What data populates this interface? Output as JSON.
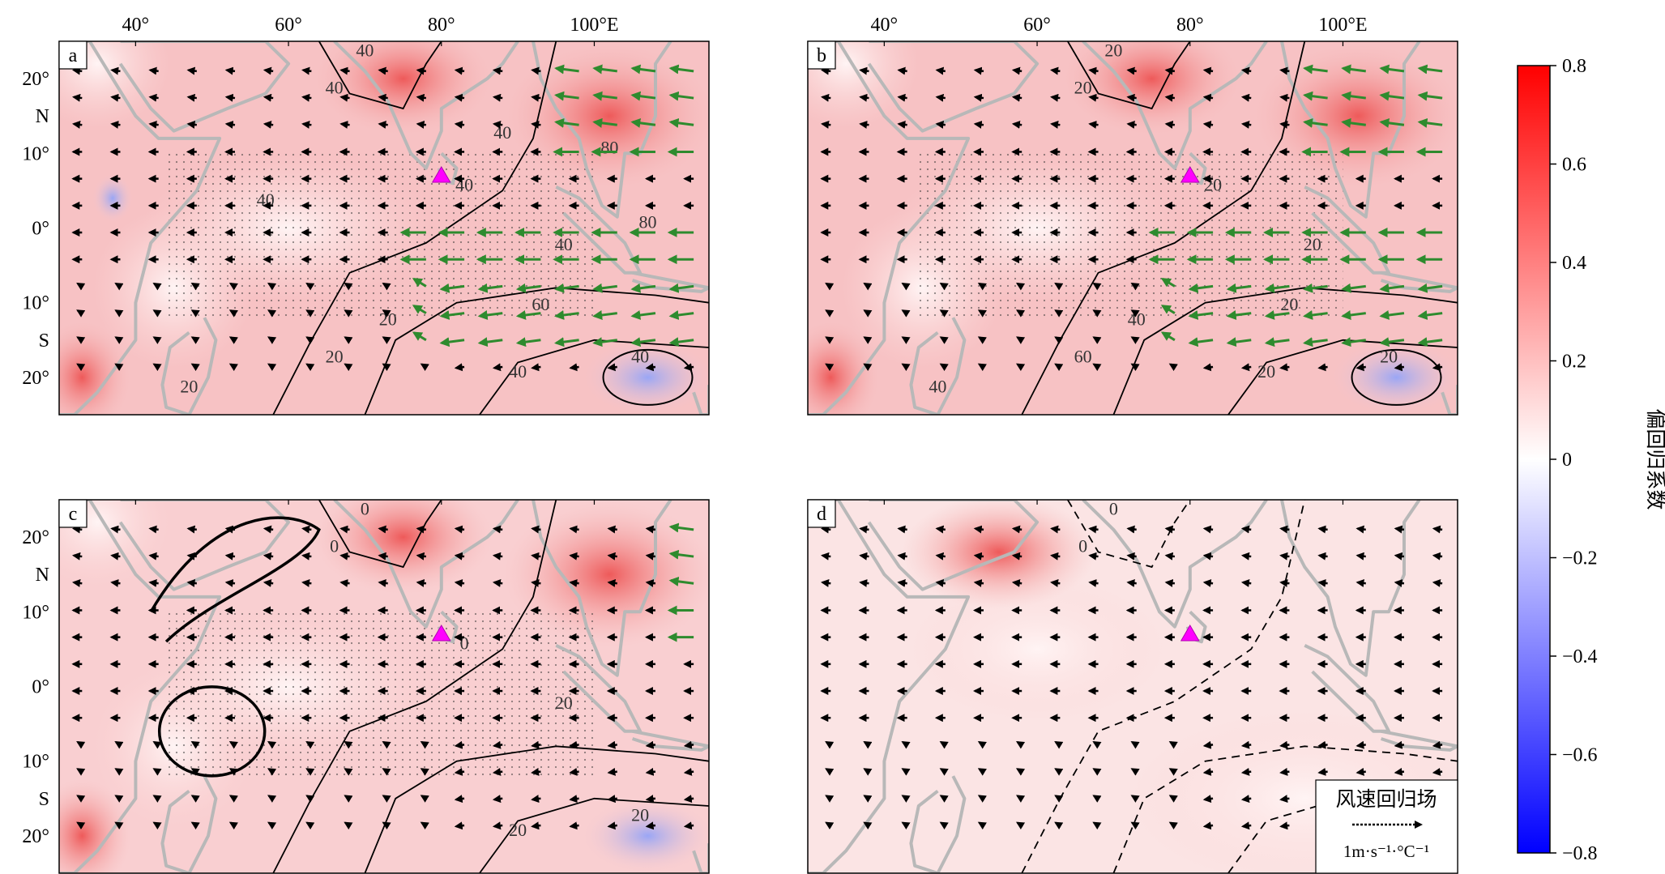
{
  "figure": {
    "x_ticks": [
      "40°",
      "60°",
      "80°",
      "100°E"
    ],
    "x_tick_values": [
      40,
      60,
      80,
      100
    ],
    "y_ticks_top": [
      "20°",
      "N",
      "10°",
      "0°",
      "10°",
      "S",
      "20°"
    ],
    "lon_range": [
      30,
      115
    ],
    "lat_range": [
      -25,
      25
    ],
    "station_marker": {
      "lon": 80,
      "lat": 7,
      "color": "#ff00ff"
    },
    "panels": [
      {
        "letter": "a",
        "contour_labels": [
          "40",
          "40",
          "40",
          "40",
          "40",
          "40",
          "20",
          "20",
          "20",
          "60",
          "80",
          "80",
          "40",
          "40"
        ]
      },
      {
        "letter": "b",
        "contour_labels": [
          "20",
          "20",
          "20",
          "20",
          "20",
          "20",
          "40",
          "60",
          "40",
          "20"
        ]
      },
      {
        "letter": "c",
        "contour_labels": [
          "0",
          "0",
          "0",
          "20",
          "20",
          "20"
        ]
      },
      {
        "letter": "d",
        "contour_labels": [
          "0",
          "0"
        ]
      }
    ],
    "legend": {
      "title": "风速回归场",
      "unit": "1m·s⁻¹·°C⁻¹"
    }
  },
  "colorbar": {
    "title": "偏回归系数",
    "ticks": [
      "0.8",
      "0.6",
      "0.4",
      "0.2",
      "0",
      "−0.2",
      "−0.4",
      "−0.6",
      "−0.8"
    ],
    "range": [
      -0.8,
      0.8
    ],
    "colors": {
      "max": "#ff0000",
      "mid": "#ffffff",
      "min": "#0000ff"
    }
  },
  "colors": {
    "land_outline": "#b8b8b8",
    "sig_vector": "#2e8b2e",
    "vector": "#000000"
  }
}
